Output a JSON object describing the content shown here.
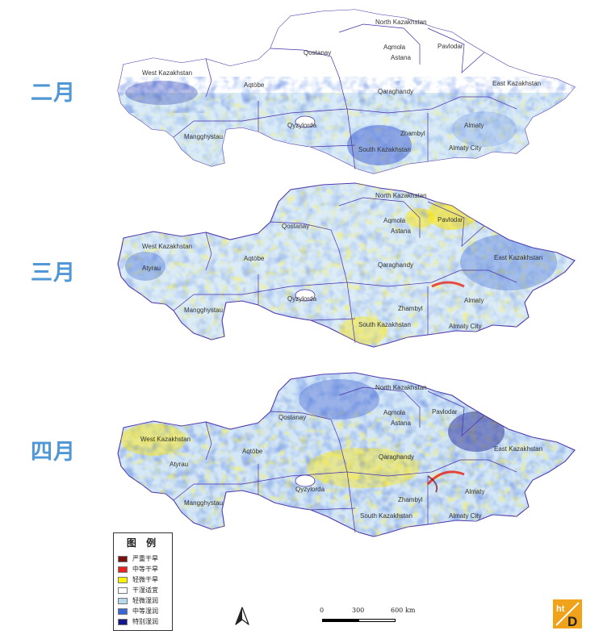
{
  "months": [
    "二月",
    "三月",
    "四月"
  ],
  "region_labels": {
    "north": "North Kazakhstan",
    "pavlodar": "Pavlodar",
    "qostanay": "Qostanay",
    "aqmola": "Aqmola",
    "astana": "Astana",
    "west": "West Kazakhstan",
    "aqtobe": "Aqtöbe",
    "qaraghandy": "Qaraghandy",
    "east": "East Kazakhstan",
    "atyrau": "Atyrau",
    "qyzylorda": "Qyzylorda",
    "zhambyl": "Zhambyl",
    "almaty": "Almaty",
    "almaty_city": "Almaty City",
    "south": "South Kazakhstan",
    "mangghystau": "Mangghystau"
  },
  "legend": {
    "title": "图 例",
    "items": [
      {
        "label": "严重干旱",
        "color": "#7a0f0f"
      },
      {
        "label": "中等干旱",
        "color": "#e8231d"
      },
      {
        "label": "轻微干旱",
        "color": "#fff200"
      },
      {
        "label": "干湿适宜",
        "color": "#ffffff"
      },
      {
        "label": "轻微湿润",
        "color": "#b6d9ee"
      },
      {
        "label": "中等湿润",
        "color": "#3a67d8"
      },
      {
        "label": "特别湿润",
        "color": "#14178c"
      }
    ]
  },
  "scale": {
    "ticks": [
      "0",
      "300",
      "600"
    ],
    "unit": "km"
  },
  "logo": {
    "top": "ht",
    "bottom": "D"
  },
  "icons": {
    "north_arrow": "north-arrow-icon"
  }
}
